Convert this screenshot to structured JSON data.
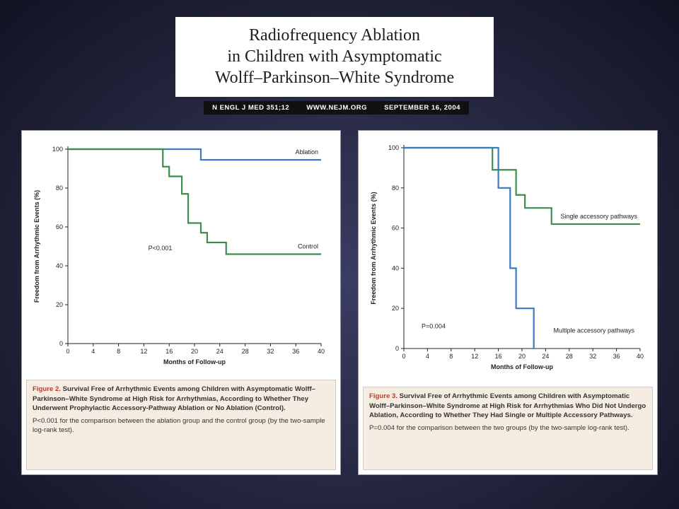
{
  "slide": {
    "title_lines": [
      "Radiofrequency Ablation",
      "in Children with Asymptomatic",
      "Wolff–Parkinson–White Syndrome"
    ],
    "citation": [
      "N ENGL J MED 351;12",
      "WWW.NEJM.ORG",
      "SEPTEMBER 16, 2004"
    ]
  },
  "chart_data": [
    {
      "type": "line",
      "step": true,
      "xlabel": "Months of Follow-up",
      "ylabel": "Freedom from Arrhythmic Events (%)",
      "xlim": [
        0,
        40
      ],
      "xticks": [
        0,
        4,
        8,
        12,
        16,
        20,
        24,
        28,
        32,
        36,
        40
      ],
      "ylim": [
        0,
        100
      ],
      "yticks": [
        0,
        20,
        40,
        60,
        80,
        100
      ],
      "annotation": "P<0.001",
      "series": [
        {
          "name": "Ablation",
          "color": "#3b7bbf",
          "x": [
            0,
            21,
            40
          ],
          "values": [
            100,
            94.5,
            94.5
          ]
        },
        {
          "name": "Control",
          "color": "#3a8f4e",
          "x": [
            0,
            15,
            16,
            18,
            19,
            21,
            22,
            25,
            40
          ],
          "values": [
            100,
            91,
            86,
            77,
            62,
            57,
            52,
            46,
            46
          ]
        }
      ],
      "caption": {
        "label": "Figure 2.",
        "title": "Survival Free of Arrhythmic Events among Children with Asymptomatic Wolff–Parkinson–White Syndrome at High Risk for Arrhythmias, According to Whether They Underwent Prophylactic Accessory-Pathway Ablation or No Ablation (Control).",
        "note": "P<0.001 for the comparison between the ablation group and the control group (by the two-sample log-rank test)."
      }
    },
    {
      "type": "line",
      "step": true,
      "xlabel": "Months of Follow-up",
      "ylabel": "Freedom from Arrhythmic Events (%)",
      "xlim": [
        0,
        40
      ],
      "xticks": [
        0,
        4,
        8,
        12,
        16,
        20,
        24,
        28,
        32,
        36,
        40
      ],
      "ylim": [
        0,
        100
      ],
      "yticks": [
        0,
        20,
        40,
        60,
        80,
        100
      ],
      "annotation": "P=0.004",
      "series": [
        {
          "name": "Single accessory pathways",
          "color": "#3a8f4e",
          "x": [
            0,
            15,
            19,
            20.5,
            25,
            40
          ],
          "values": [
            100,
            89,
            76.5,
            70,
            62,
            62
          ]
        },
        {
          "name": "Multiple accessory pathways",
          "color": "#3b7bbf",
          "x": [
            0,
            16,
            18,
            19,
            22
          ],
          "values": [
            100,
            80,
            40,
            20,
            0
          ]
        }
      ],
      "caption": {
        "label": "Figure 3.",
        "title": "Survival Free of Arrhythmic Events among Children with Asymptomatic Wolff–Parkinson–White Syndrome at High Risk for Arrhythmias Who Did Not Undergo Ablation, According to Whether They Had Single or Multiple Accessory Pathways.",
        "note": "P=0.004 for the comparison between the two groups (by the two-sample log-rank test)."
      }
    }
  ]
}
